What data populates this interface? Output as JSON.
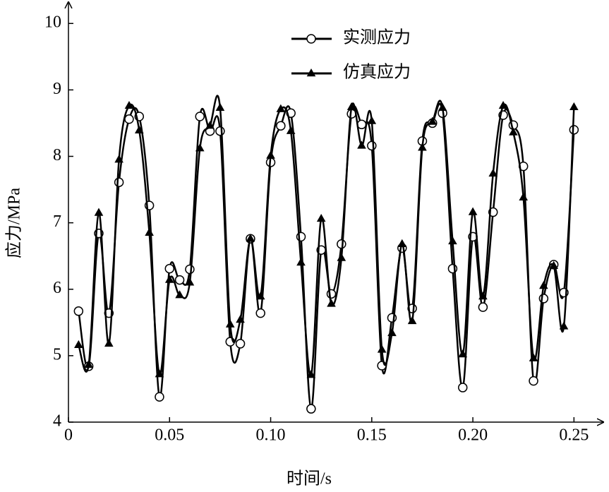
{
  "chart_data": {
    "type": "line",
    "xlabel": "时间/s",
    "ylabel": "应力/MPa",
    "x": [
      0.005,
      0.01,
      0.015,
      0.02,
      0.025,
      0.03,
      0.035,
      0.04,
      0.045,
      0.05,
      0.055,
      0.06,
      0.065,
      0.07,
      0.075,
      0.08,
      0.085,
      0.09,
      0.095,
      0.1,
      0.105,
      0.11,
      0.115,
      0.12,
      0.125,
      0.13,
      0.135,
      0.14,
      0.145,
      0.15,
      0.155,
      0.16,
      0.165,
      0.17,
      0.175,
      0.18,
      0.185,
      0.19,
      0.195,
      0.2,
      0.205,
      0.21,
      0.215,
      0.22,
      0.225,
      0.23,
      0.235,
      0.24,
      0.245,
      0.25
    ],
    "series": [
      {
        "name": "实测应力",
        "color": "#000000",
        "marker": "circle",
        "values": [
          5.67,
          4.84,
          6.84,
          5.64,
          7.61,
          8.56,
          8.6,
          7.26,
          4.38,
          6.31,
          6.14,
          6.3,
          8.6,
          8.38,
          8.38,
          5.21,
          5.18,
          6.76,
          5.64,
          7.91,
          8.46,
          8.65,
          6.79,
          4.2,
          6.59,
          5.93,
          6.68,
          8.64,
          8.48,
          8.16,
          4.85,
          5.57,
          6.62,
          5.71,
          8.23,
          8.5,
          8.65,
          6.31,
          4.52,
          6.79,
          5.73,
          7.16,
          8.62,
          8.47,
          7.85,
          4.62,
          5.86,
          6.37,
          5.95,
          8.4
        ]
      },
      {
        "name": "仿真应力",
        "color": "#000000",
        "marker": "triangle",
        "values": [
          5.16,
          4.86,
          7.15,
          5.18,
          7.95,
          8.76,
          8.39,
          6.85,
          4.72,
          6.14,
          5.91,
          6.1,
          8.12,
          8.46,
          8.73,
          5.47,
          5.54,
          6.76,
          5.89,
          8.01,
          8.71,
          8.38,
          6.4,
          4.71,
          7.06,
          5.78,
          6.47,
          8.74,
          8.16,
          8.53,
          5.09,
          5.34,
          6.68,
          5.52,
          8.13,
          8.52,
          8.73,
          6.72,
          5.02,
          7.16,
          5.89,
          7.74,
          8.76,
          8.36,
          7.38,
          4.96,
          6.05,
          6.35,
          5.44,
          8.74
        ]
      }
    ],
    "xlim": [
      0,
      0.26
    ],
    "ylim": [
      4,
      10.3
    ],
    "xticks": [
      0,
      0.05,
      {
        "value": 0.1,
        "label": "0.10"
      },
      0.15,
      {
        "value": 0.2,
        "label": "0.20"
      },
      0.25
    ],
    "yticks": [
      4,
      5,
      6,
      7,
      8,
      9,
      10
    ],
    "legend": "upper-center"
  }
}
